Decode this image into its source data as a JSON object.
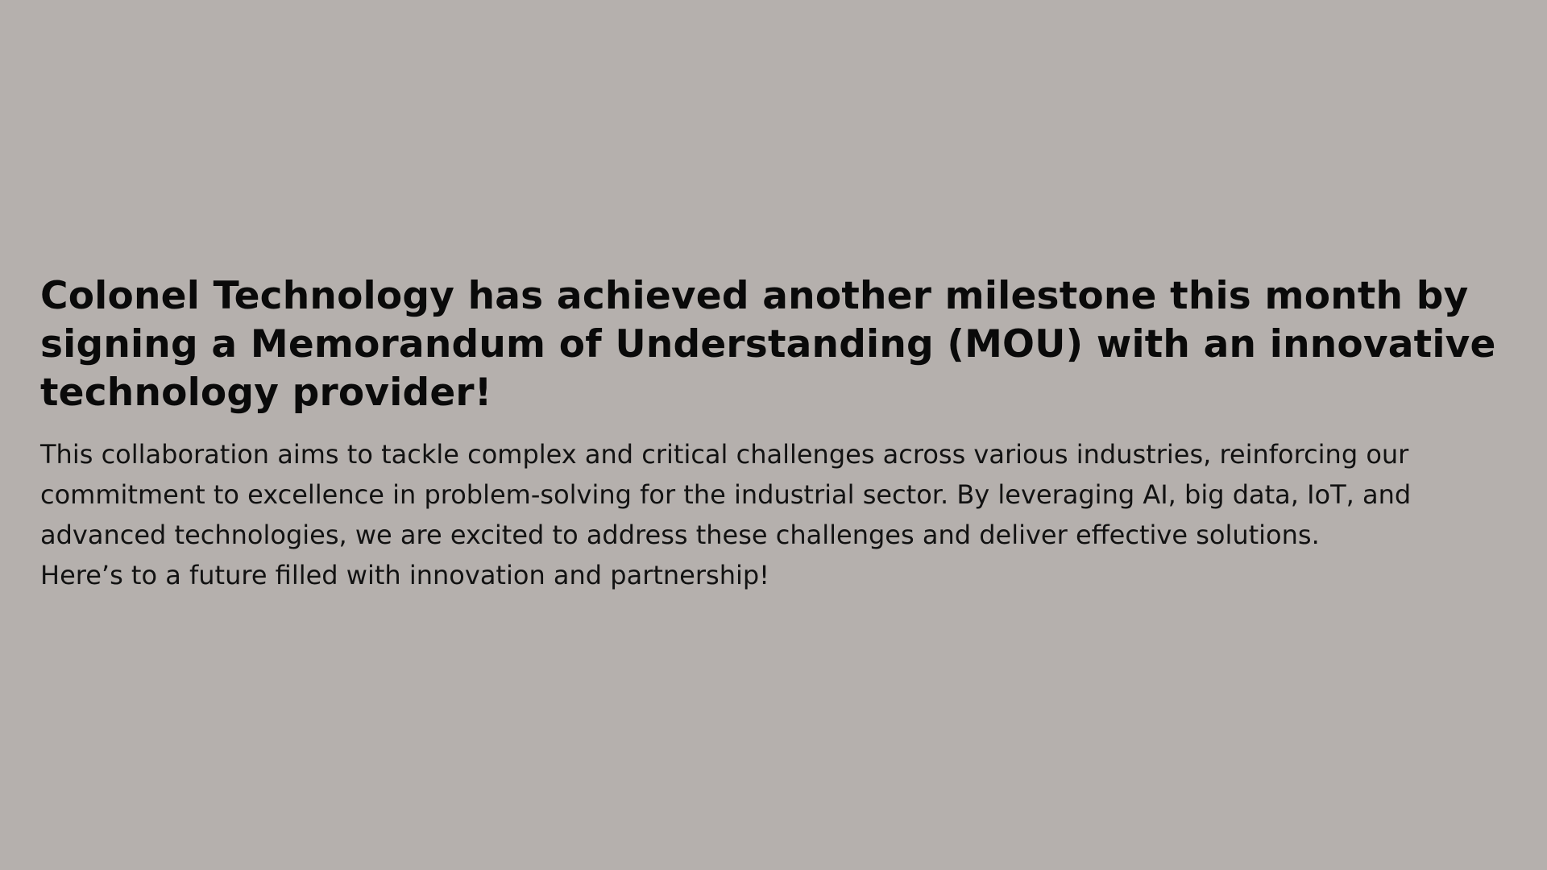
{
  "post": {
    "headline": "Colonel Technology has achieved another milestone this month by signing a Memorandum of Understanding (MOU) with an innovative technology provider!",
    "paragraphs": [
      "This collaboration aims to tackle complex and critical challenges across various industries, reinforcing our commitment to excellence in problem-solving for the industrial sector. By leveraging AI, big data, IoT, and advanced technologies, we are excited to address these challenges and deliver effective solutions.",
      "Here’s to a future filled with innovation and partnership!"
    ]
  },
  "colors": {
    "background": "#b5b0ad",
    "text": "#0a0a0a"
  }
}
